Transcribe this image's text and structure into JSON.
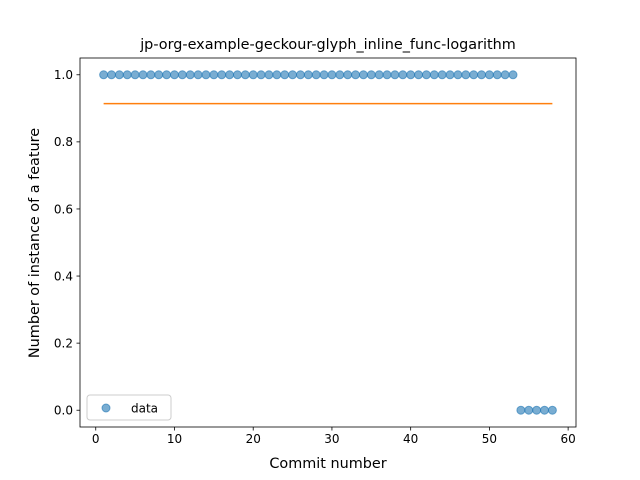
{
  "chart_data": {
    "type": "scatter",
    "title": "jp-org-example-geckour-glyph_inline_func-logarithm",
    "xlabel": "Commit number",
    "ylabel": "Number of instance of a feature",
    "xlim": [
      -2,
      61
    ],
    "ylim": [
      -0.05,
      1.05
    ],
    "xticks": [
      0,
      10,
      20,
      30,
      40,
      50,
      60
    ],
    "yticks": [
      0.0,
      0.2,
      0.4,
      0.6,
      0.8,
      1.0
    ],
    "xtick_labels": [
      "0",
      "10",
      "20",
      "30",
      "40",
      "50",
      "60"
    ],
    "ytick_labels": [
      "0.0",
      "0.2",
      "0.4",
      "0.6",
      "0.8",
      "1.0"
    ],
    "grid": false,
    "legend_position": "lower-left",
    "series": [
      {
        "name": "data",
        "kind": "scatter",
        "color": "#1f77b4",
        "x": [
          1,
          2,
          3,
          4,
          5,
          6,
          7,
          8,
          9,
          10,
          11,
          12,
          13,
          14,
          15,
          16,
          17,
          18,
          19,
          20,
          21,
          22,
          23,
          24,
          25,
          26,
          27,
          28,
          29,
          30,
          31,
          32,
          33,
          34,
          35,
          36,
          37,
          38,
          39,
          40,
          41,
          42,
          43,
          44,
          45,
          46,
          47,
          48,
          49,
          50,
          51,
          52,
          53,
          54,
          55,
          56,
          57,
          58
        ],
        "y": [
          1,
          1,
          1,
          1,
          1,
          1,
          1,
          1,
          1,
          1,
          1,
          1,
          1,
          1,
          1,
          1,
          1,
          1,
          1,
          1,
          1,
          1,
          1,
          1,
          1,
          1,
          1,
          1,
          1,
          1,
          1,
          1,
          1,
          1,
          1,
          1,
          1,
          1,
          1,
          1,
          1,
          1,
          1,
          1,
          1,
          1,
          1,
          1,
          1,
          1,
          1,
          1,
          1,
          0,
          0,
          0,
          0,
          0
        ]
      },
      {
        "kind": "line",
        "color": "#ff7f0e",
        "x": [
          1,
          58
        ],
        "y": [
          0.914,
          0.914
        ]
      }
    ]
  }
}
